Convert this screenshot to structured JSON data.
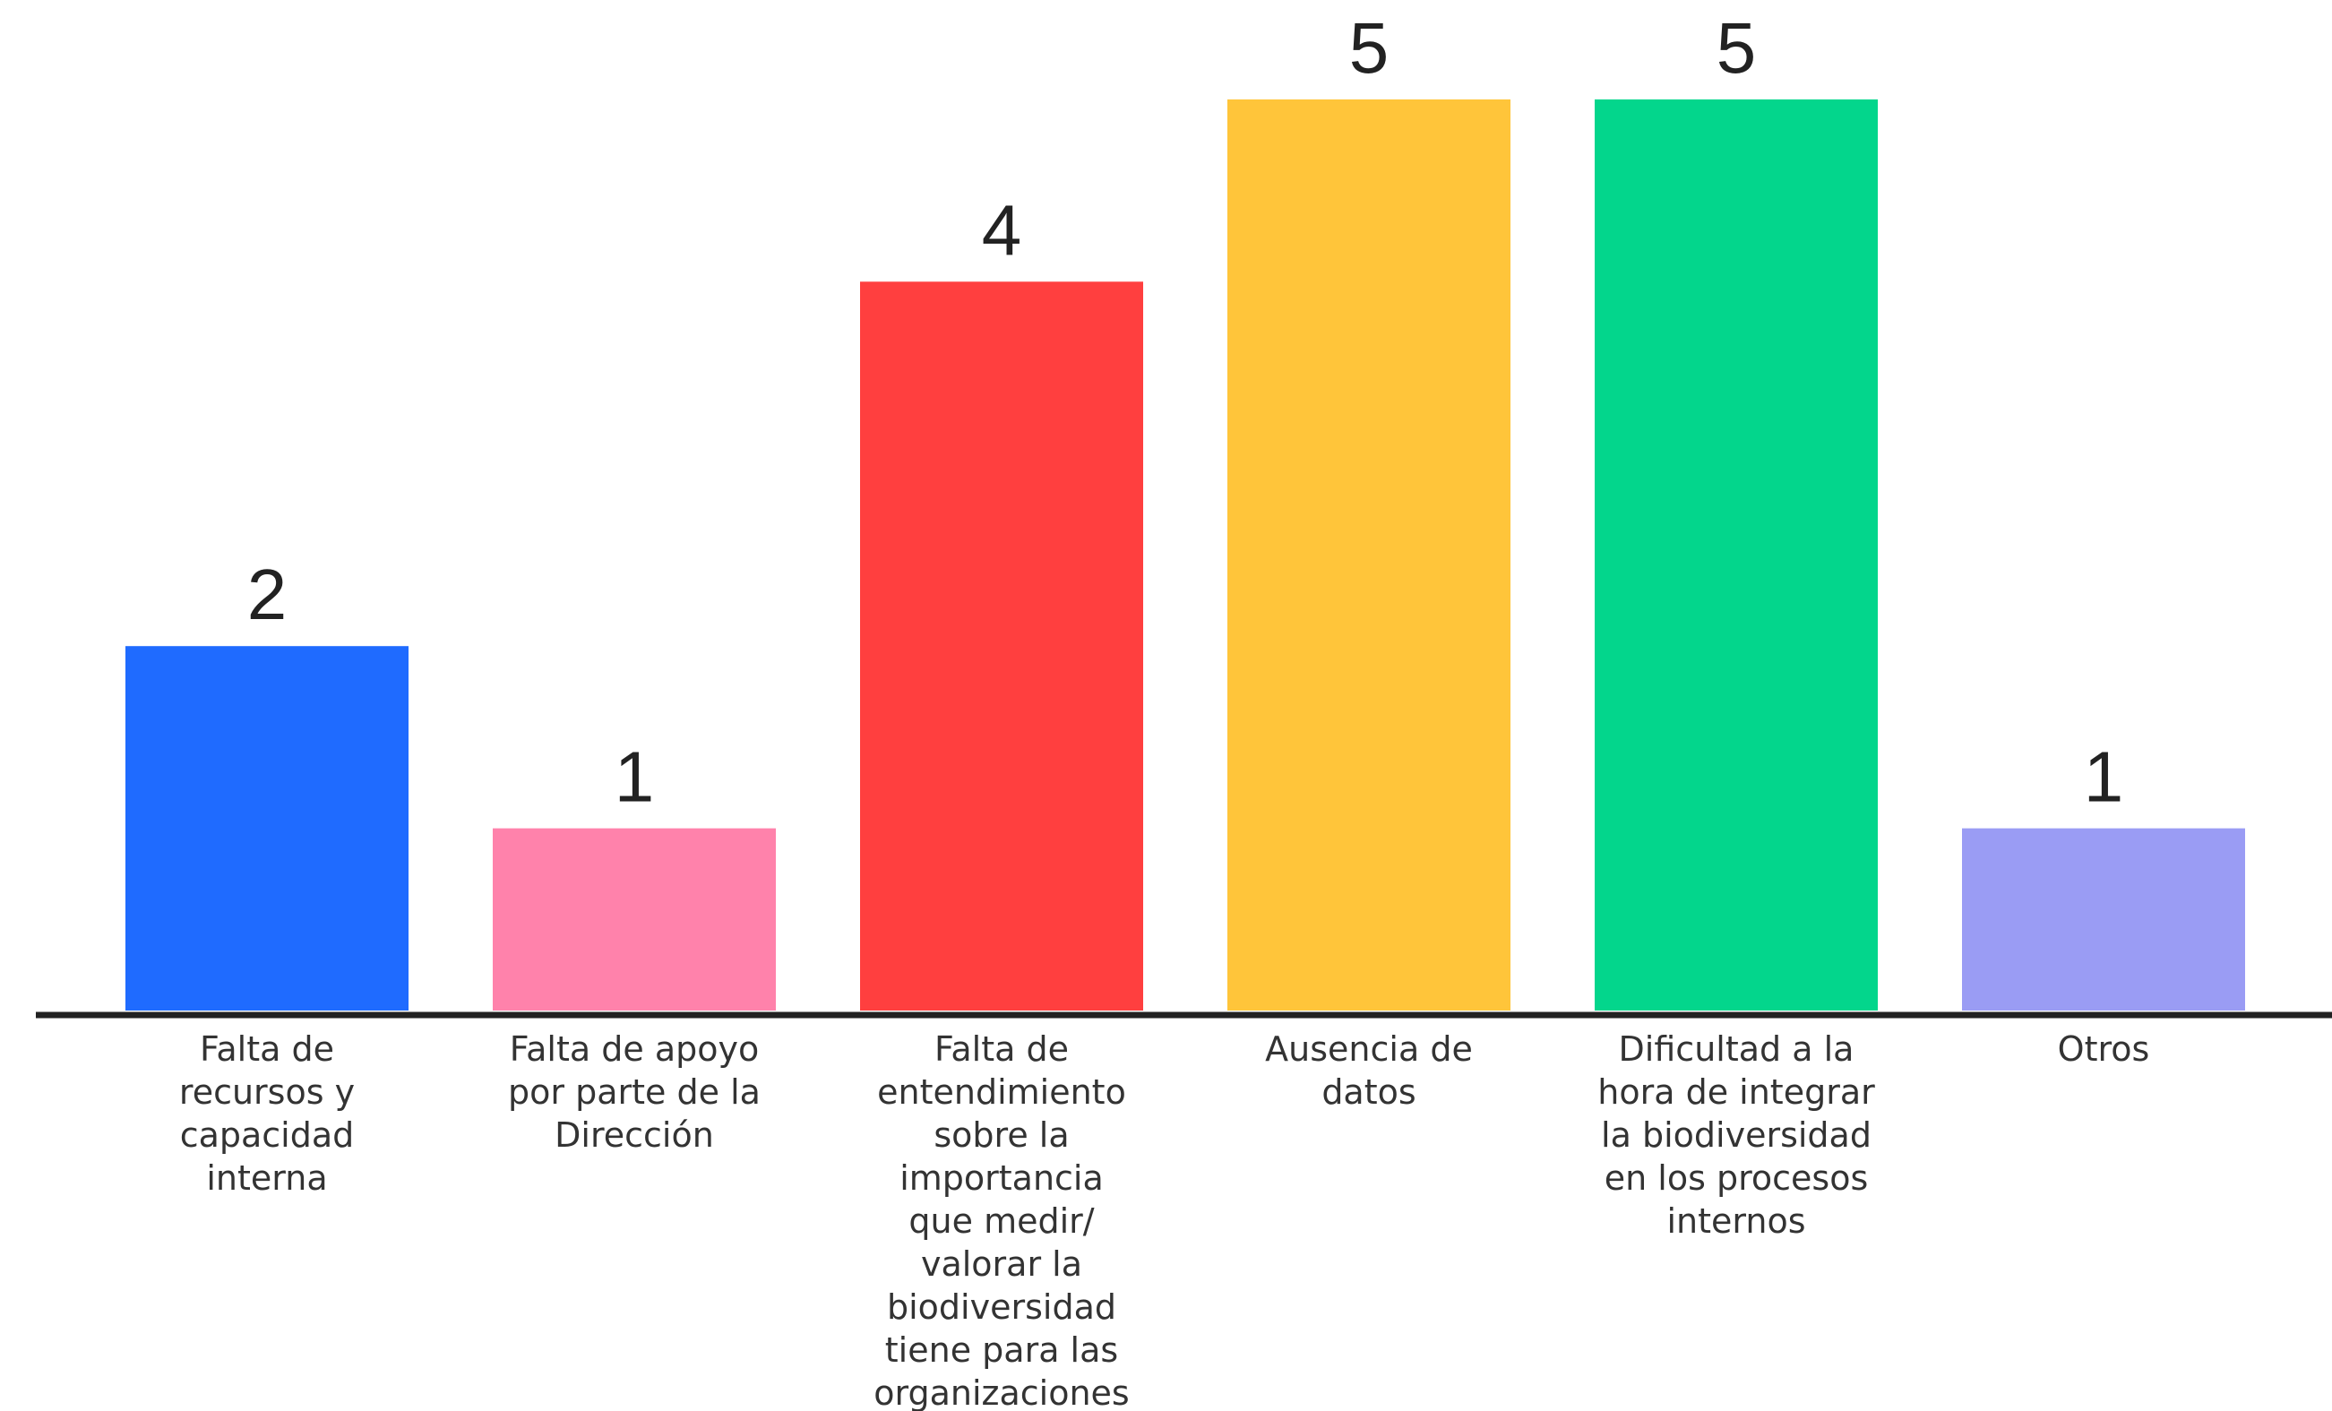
{
  "chart_data": {
    "type": "bar",
    "categories": [
      [
        "Falta de",
        "recursos y",
        "capacidad",
        "interna"
      ],
      [
        "Falta de apoyo",
        "por parte de la",
        "Dirección"
      ],
      [
        "Falta de",
        "entendimiento",
        "sobre la",
        "importancia",
        "que medir/",
        "valorar la",
        "biodiversidad",
        "tiene para las",
        "organizaciones"
      ],
      [
        "Ausencia de",
        "datos"
      ],
      [
        "Dificultad a la",
        "hora de integrar",
        "la biodiversidad",
        "en los procesos",
        "internos"
      ],
      [
        "Otros"
      ]
    ],
    "values": [
      2,
      1,
      4,
      5,
      5,
      1
    ],
    "data_labels": [
      "2",
      "1",
      "4",
      "5",
      "5",
      "1"
    ],
    "colors": [
      "#1f6bff",
      "#ff82ab",
      "#ff3f3f",
      "#ffc53a",
      "#03d68c",
      "#9a9cf4"
    ],
    "title": "",
    "xlabel": "",
    "ylabel": "",
    "ylim": [
      0,
      5
    ],
    "grid": false,
    "legend": "none",
    "axis_color": "#222222"
  }
}
